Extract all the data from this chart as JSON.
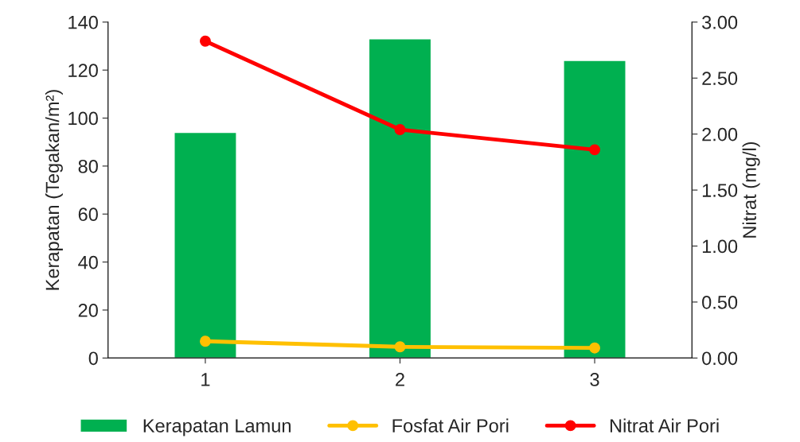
{
  "chart_data": {
    "type": "bar",
    "categories": [
      "1",
      "2",
      "3"
    ],
    "ylabel": "Kerapatan (Tegakan/m²)",
    "y2label": "Nitrat (mg/l)",
    "ylim": [
      0,
      140
    ],
    "yticks": [
      0,
      20,
      40,
      60,
      80,
      100,
      120,
      140
    ],
    "y2lim": [
      0,
      3.0
    ],
    "y2ticks": [
      {
        "value": 0,
        "label": "0.00"
      },
      {
        "value": 0.5,
        "label": "0.50"
      },
      {
        "value": 1.0,
        "label": "1.00"
      },
      {
        "value": 1.5,
        "label": "1.50"
      },
      {
        "value": 2.0,
        "label": "2.00"
      },
      {
        "value": 2.5,
        "label": "2.50"
      },
      {
        "value": 3.0,
        "label": "3.00"
      }
    ],
    "series": [
      {
        "name": "Kerapatan Lamun",
        "color": "#00b050",
        "values": [
          94,
          133,
          124
        ]
      },
      {
        "name": "Fosfat Air Pori",
        "type": "line",
        "axis": "y2",
        "color": "#ffc000",
        "marker": "circle",
        "values": [
          0.15,
          0.1,
          0.09
        ]
      },
      {
        "name": "Nitrat Air Pori",
        "type": "line",
        "axis": "y2",
        "color": "#ff0000",
        "marker": "circle",
        "values": [
          2.83,
          2.04,
          1.86
        ]
      }
    ],
    "grid": false,
    "legend": "bottom"
  }
}
